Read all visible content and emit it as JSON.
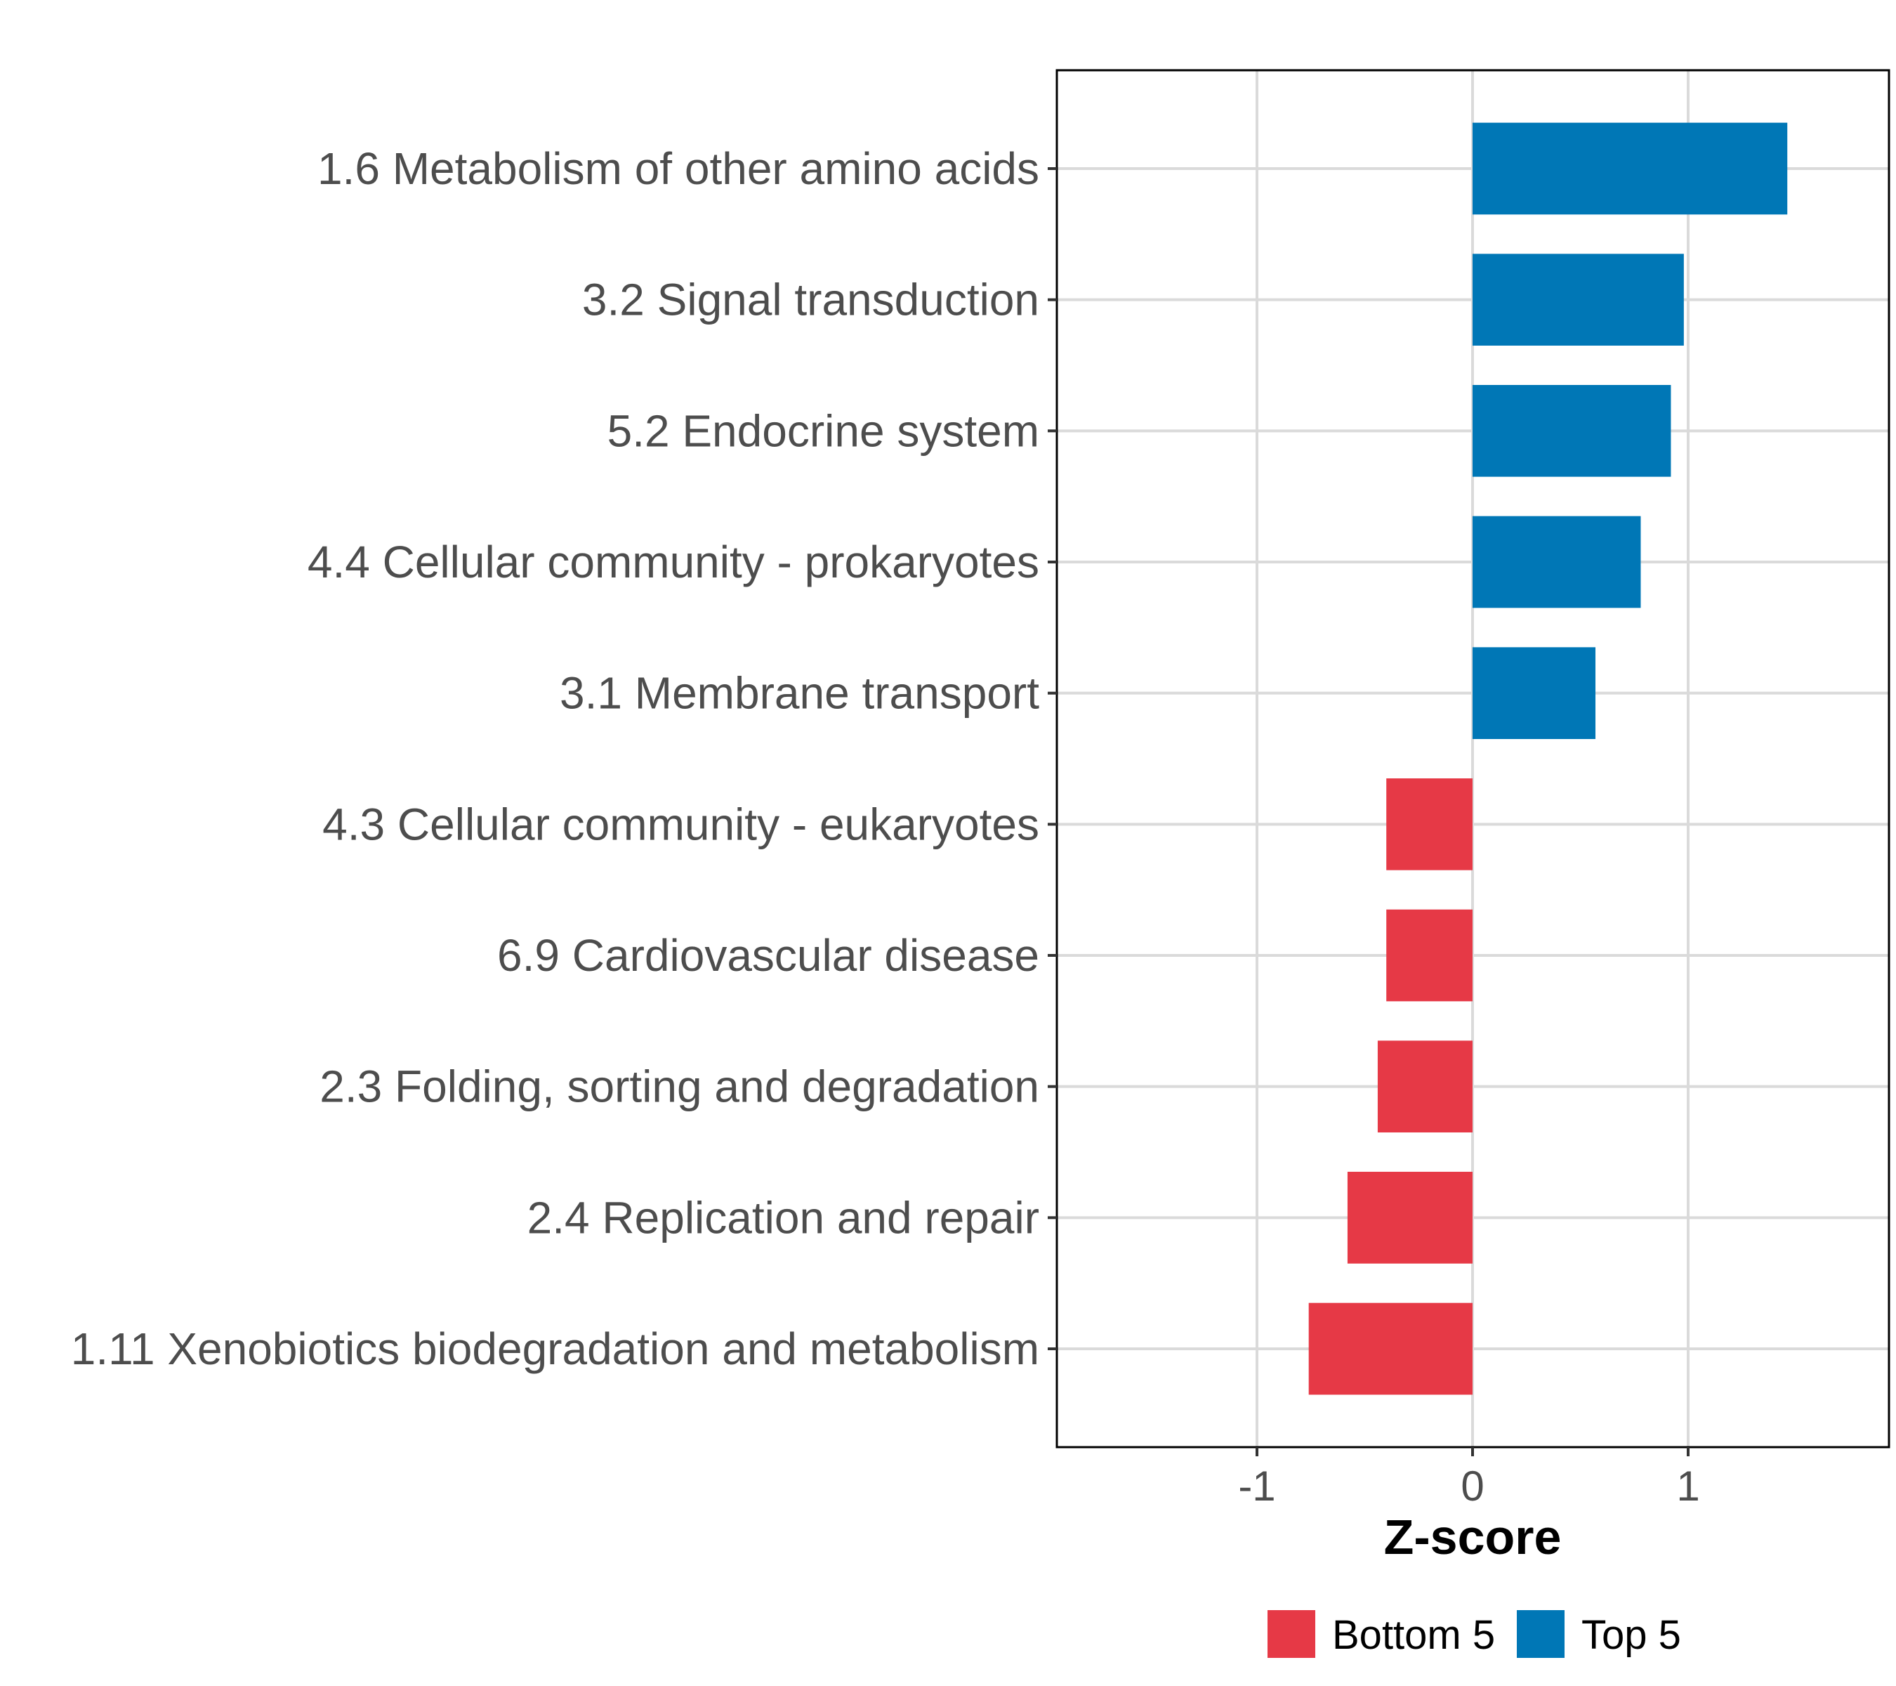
{
  "chart_data": {
    "type": "bar",
    "orientation": "horizontal",
    "title": "",
    "xlabel": "Z-score",
    "ylabel": "",
    "xlim": [
      -1.9,
      1.93
    ],
    "xticks": [
      -1,
      0,
      1
    ],
    "xtick_labels": [
      "-1",
      "0",
      "1"
    ],
    "grid": true,
    "legend_position": "bottom",
    "categories": [
      "1.6 Metabolism of other amino acids",
      "3.2 Signal transduction",
      "5.2 Endocrine system",
      "4.4 Cellular community - prokaryotes",
      "3.1 Membrane transport",
      "4.3 Cellular community - eukaryotes",
      "6.9 Cardiovascular disease",
      "2.3 Folding, sorting and degradation",
      "2.4 Replication and repair",
      "1.11 Xenobiotics biodegradation and metabolism"
    ],
    "values": [
      1.46,
      0.98,
      0.92,
      0.78,
      0.57,
      -0.4,
      -0.4,
      -0.44,
      -0.58,
      -0.76
    ],
    "groups": [
      "Top 5",
      "Top 5",
      "Top 5",
      "Top 5",
      "Top 5",
      "Bottom 5",
      "Bottom 5",
      "Bottom 5",
      "Bottom 5",
      "Bottom 5"
    ],
    "legend": [
      {
        "name": "Bottom 5",
        "color": "#e63946"
      },
      {
        "name": "Top 5",
        "color": "#0077b6"
      }
    ]
  }
}
